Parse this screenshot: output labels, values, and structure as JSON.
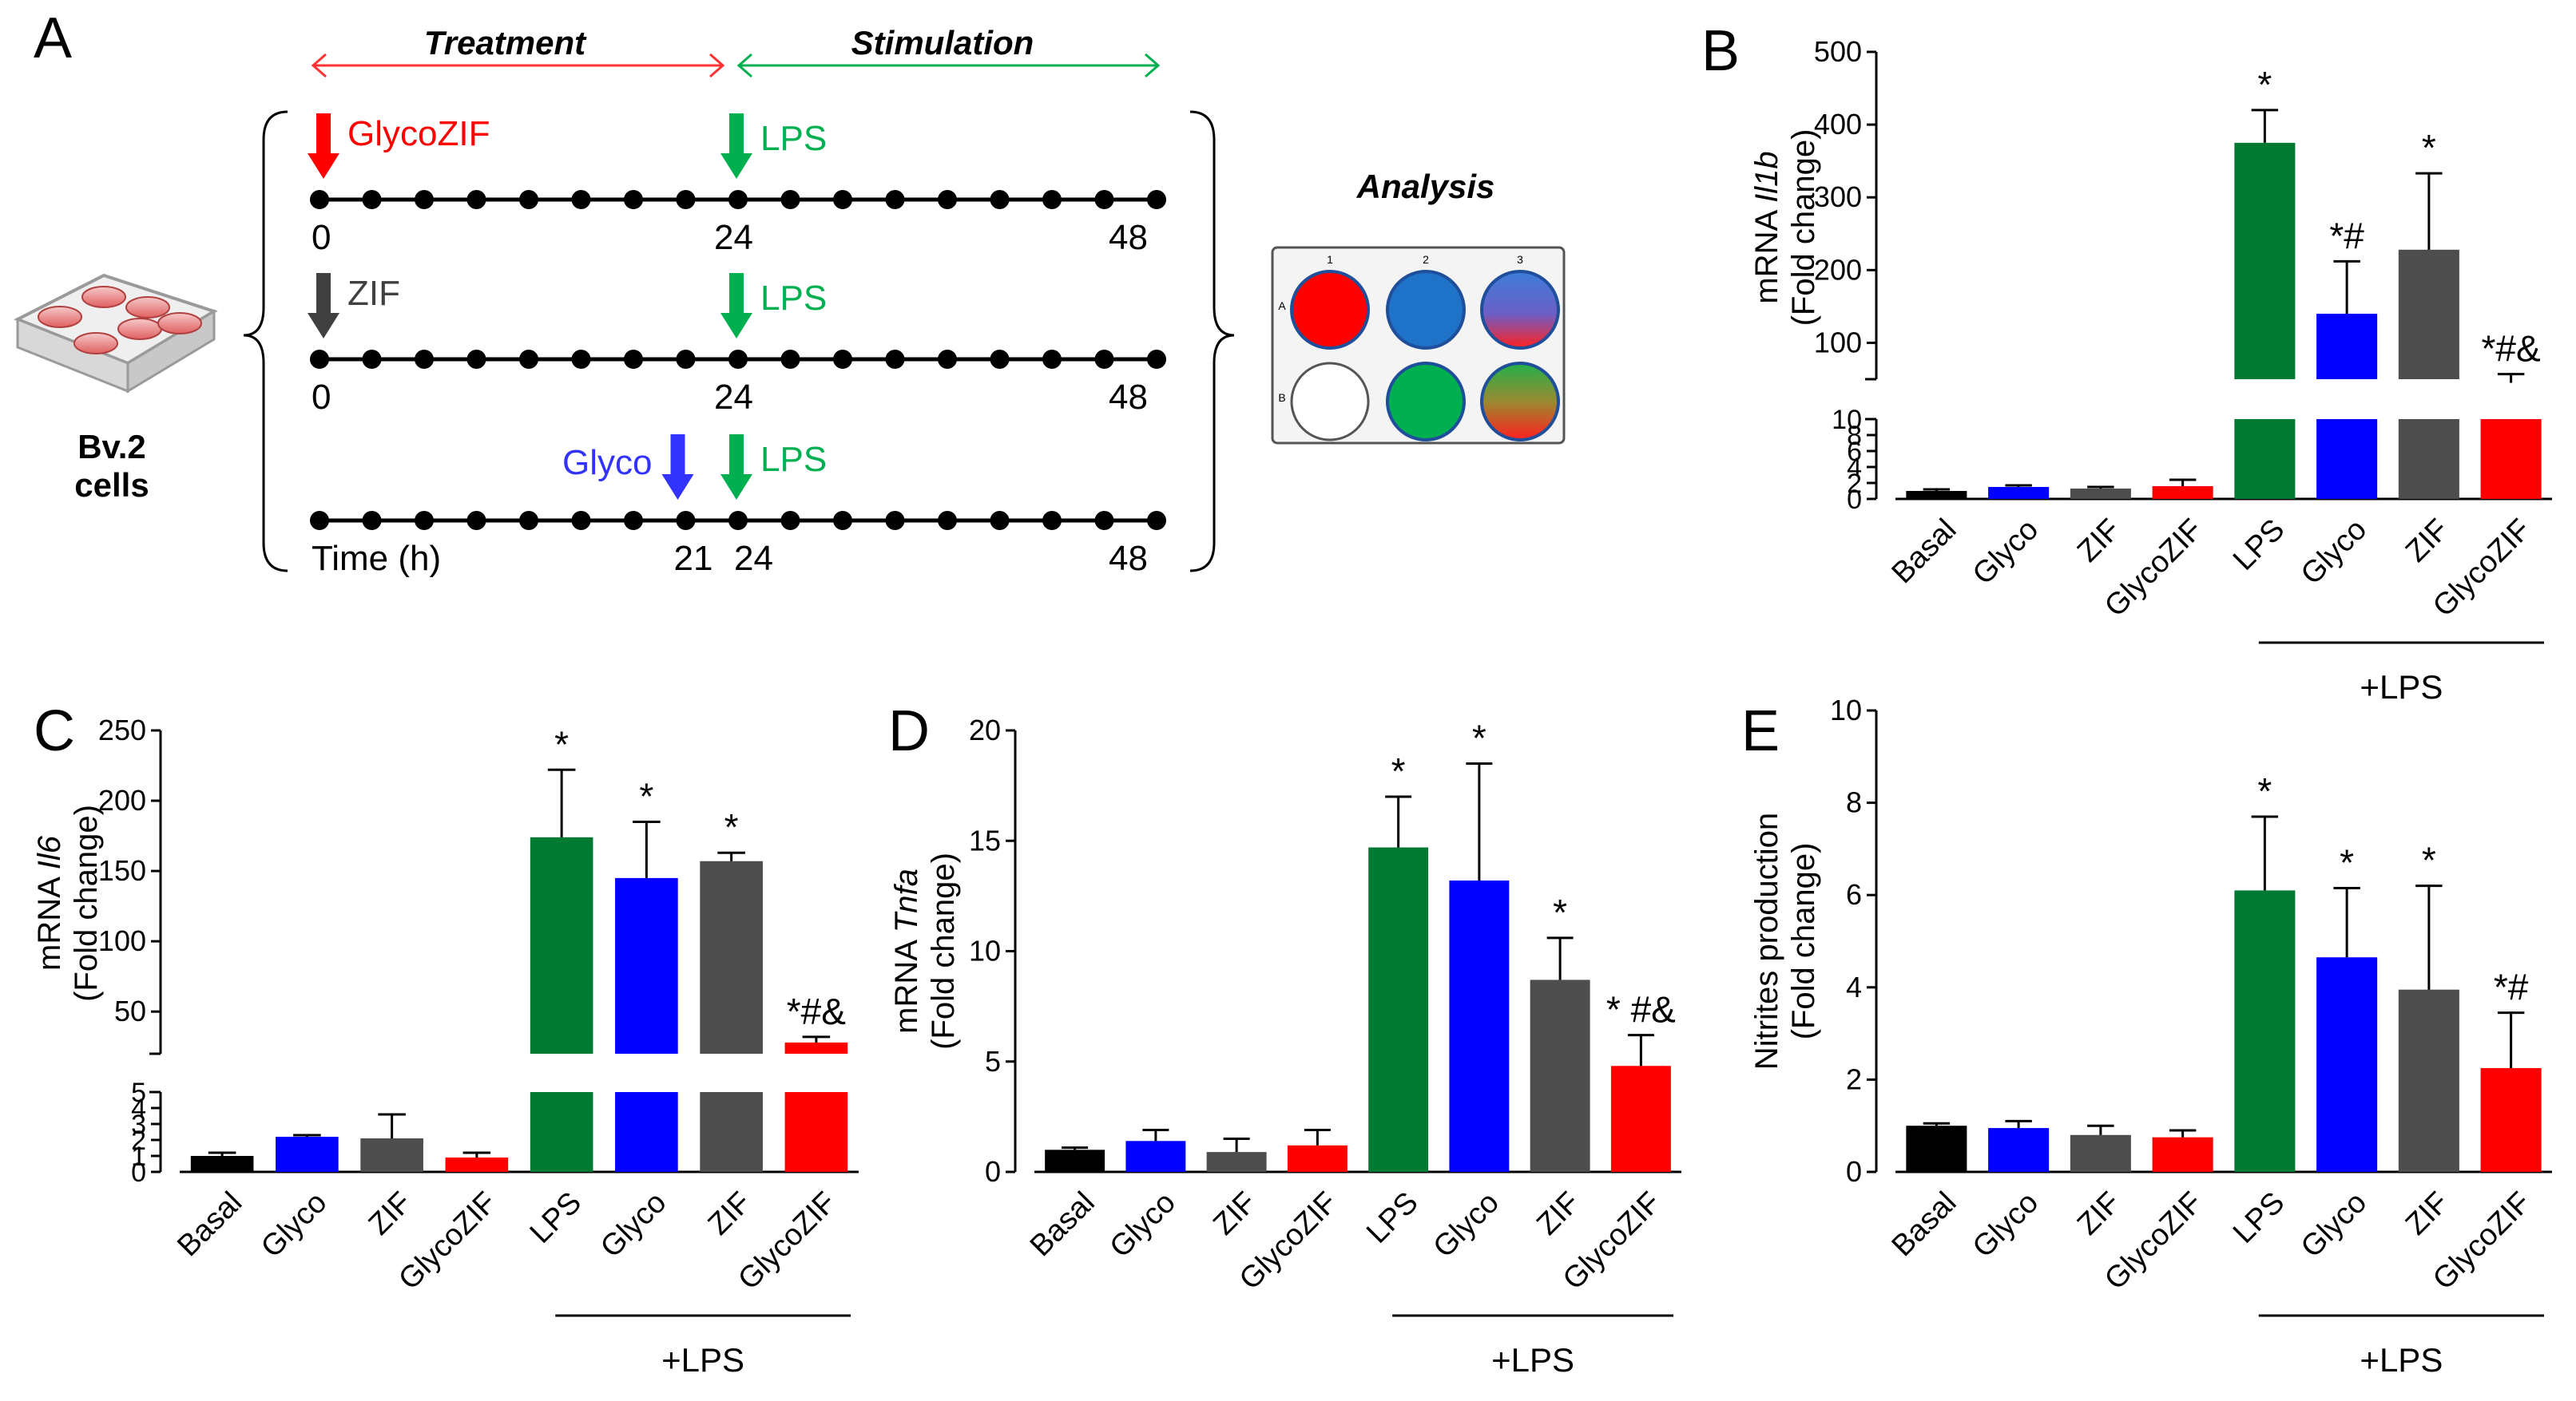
{
  "panel_a": {
    "letter": "A",
    "header_treatment": "Treatment",
    "header_stimulation": "Stimulation",
    "cells_line1": "Bv.2",
    "cells_line2": "cells",
    "analysis_title": "Analysis",
    "rows": [
      {
        "treatment": "GlycoZIF",
        "stimulus": "LPS",
        "ticks": [
          "0",
          "24",
          "48"
        ],
        "color": "#ff0000"
      },
      {
        "treatment": "ZIF",
        "stimulus": "LPS",
        "ticks": [
          "0",
          "24",
          "48"
        ],
        "color": "#404040"
      },
      {
        "treatment": "Glyco",
        "stimulus": "LPS",
        "ticks": [
          "Time (h)",
          "21",
          "24",
          "48"
        ],
        "color": "#3333ff"
      }
    ],
    "plate": {
      "col_labels": [
        "1",
        "2",
        "3"
      ],
      "row_labels": [
        "A",
        "B"
      ]
    },
    "colors": {
      "treatment_arrow": "#ff3333",
      "stimulation_arrow": "#00b050",
      "lps": "#00b050",
      "timeline": "#000000"
    }
  },
  "group_label": "+LPS",
  "series_colors": [
    "#000000",
    "#0000ff",
    "#4d4d4d",
    "#ff0000",
    "#007a33",
    "#0000ff",
    "#4d4d4d",
    "#ff0000"
  ],
  "chart_data": [
    {
      "id": "B",
      "letter": "B",
      "type": "bar",
      "ylabel_prefix": "mRNA ",
      "ylabel_gene": "Il1b",
      "ylabel_line2": "(Fold change)",
      "broken_axis": true,
      "lower_ylim": [
        0,
        10
      ],
      "lower_ticks": [
        "0",
        "2",
        "4",
        "6",
        "8",
        "10"
      ],
      "upper_ylim": [
        50,
        500
      ],
      "upper_ticks": [
        "100",
        "200",
        "300",
        "400",
        "500"
      ],
      "categories": [
        "Basal",
        "Glyco",
        "ZIF",
        "GlycoZIF",
        "LPS",
        "Glyco",
        "ZIF",
        "GlycoZIF"
      ],
      "values": [
        1,
        1.5,
        1.3,
        1.6,
        375,
        140,
        228,
        45
      ],
      "errors": [
        0.2,
        0.2,
        0.2,
        0.8,
        45,
        72,
        105,
        12
      ],
      "annotations": [
        "",
        "",
        "",
        "",
        "*",
        "*#",
        "*",
        "*#&"
      ]
    },
    {
      "id": "C",
      "letter": "C",
      "type": "bar",
      "ylabel_prefix": "mRNA ",
      "ylabel_gene": "Il6",
      "ylabel_line2": "(Fold change)",
      "broken_axis": true,
      "lower_ylim": [
        0,
        5
      ],
      "lower_ticks": [
        "0",
        "1",
        "2",
        "3",
        "4",
        "5"
      ],
      "upper_ylim": [
        20,
        250
      ],
      "upper_ticks": [
        "50",
        "100",
        "150",
        "200",
        "250"
      ],
      "categories": [
        "Basal",
        "Glyco",
        "ZIF",
        "GlycoZIF",
        "LPS",
        "Glyco",
        "ZIF",
        "GlycoZIF"
      ],
      "values": [
        1,
        2.2,
        2.1,
        0.9,
        174,
        145,
        157,
        28
      ],
      "errors": [
        0.2,
        0.1,
        1.5,
        0.3,
        48,
        40,
        6,
        4
      ],
      "annotations": [
        "",
        "",
        "",
        "",
        "*",
        "*",
        "*",
        "*#&"
      ]
    },
    {
      "id": "D",
      "letter": "D",
      "type": "bar",
      "ylabel_prefix": "mRNA ",
      "ylabel_gene": "Tnfa",
      "ylabel_line2": "(Fold change)",
      "broken_axis": false,
      "ylim": [
        0,
        20
      ],
      "ticks": [
        "0",
        "5",
        "10",
        "15",
        "20"
      ],
      "categories": [
        "Basal",
        "Glyco",
        "ZIF",
        "GlycoZIF",
        "LPS",
        "Glyco",
        "ZIF",
        "GlycoZIF"
      ],
      "values": [
        1.0,
        1.4,
        0.9,
        1.2,
        14.7,
        13.2,
        8.7,
        4.8
      ],
      "errors": [
        0.1,
        0.5,
        0.6,
        0.7,
        2.3,
        5.3,
        1.9,
        1.4
      ],
      "annotations": [
        "",
        "",
        "",
        "",
        "*",
        "*",
        "*",
        "* #&"
      ]
    },
    {
      "id": "E",
      "letter": "E",
      "type": "bar",
      "ylabel_prefix": "Nitrites production",
      "ylabel_gene": "",
      "ylabel_line2": "(Fold change)",
      "broken_axis": false,
      "ylim": [
        0,
        10
      ],
      "ticks": [
        "0",
        "2",
        "4",
        "6",
        "8",
        "10"
      ],
      "categories": [
        "Basal",
        "Glyco",
        "ZIF",
        "GlycoZIF",
        "LPS",
        "Glyco",
        "ZIF",
        "GlycoZIF"
      ],
      "values": [
        1.0,
        0.95,
        0.8,
        0.75,
        6.1,
        4.65,
        3.95,
        2.25
      ],
      "errors": [
        0.05,
        0.15,
        0.2,
        0.15,
        1.6,
        1.5,
        2.25,
        1.2
      ],
      "annotations": [
        "",
        "",
        "",
        "",
        "*",
        "*",
        "*",
        "*#"
      ]
    }
  ]
}
